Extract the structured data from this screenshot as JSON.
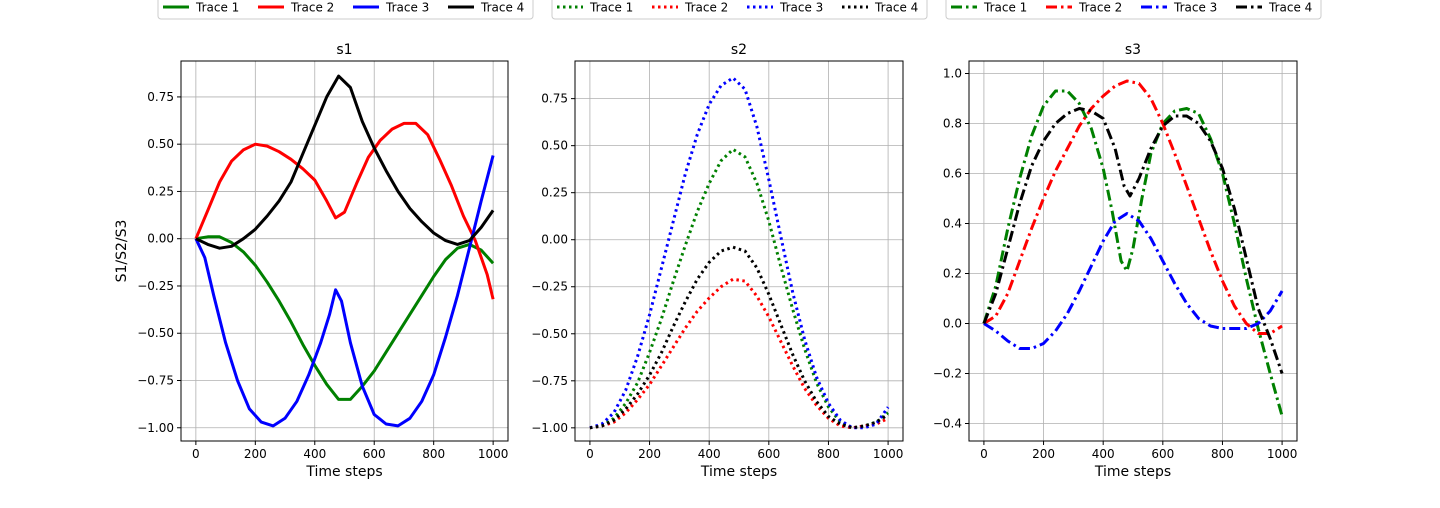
{
  "figure": {
    "shared_xlabel": "Time steps",
    "shared_ylabel": "S1/S2/S3"
  },
  "chart_data": [
    {
      "type": "line",
      "title": "s1",
      "xlabel": "Time steps",
      "ylabel": "S1/S2/S3",
      "xlim": [
        -50,
        1050
      ],
      "ylim": [
        -1.07,
        0.94
      ],
      "xticks": [
        0,
        200,
        400,
        600,
        800,
        1000
      ],
      "yticks": [
        -1.0,
        -0.75,
        -0.5,
        -0.25,
        0.0,
        0.25,
        0.5,
        0.75
      ],
      "ytick_labels": [
        "−1.00",
        "−0.75",
        "−0.50",
        "−0.25",
        "0.00",
        "0.25",
        "0.50",
        "0.75"
      ],
      "grid": true,
      "legend": {
        "position": "top",
        "style": "solid",
        "entries": [
          "Trace 1",
          "Trace 2",
          "Trace 3",
          "Trace 4"
        ]
      },
      "series": [
        {
          "name": "Trace 1",
          "color": "#008000",
          "style": "solid",
          "x": [
            0,
            40,
            80,
            120,
            160,
            200,
            240,
            280,
            320,
            360,
            400,
            440,
            480,
            520,
            560,
            600,
            640,
            680,
            720,
            760,
            800,
            840,
            880,
            920,
            960,
            1000
          ],
          "y": [
            0.0,
            0.01,
            0.01,
            -0.02,
            -0.07,
            -0.14,
            -0.23,
            -0.33,
            -0.44,
            -0.56,
            -0.67,
            -0.77,
            -0.85,
            -0.85,
            -0.78,
            -0.7,
            -0.6,
            -0.5,
            -0.4,
            -0.3,
            -0.2,
            -0.11,
            -0.05,
            -0.03,
            -0.06,
            -0.13
          ]
        },
        {
          "name": "Trace 2",
          "color": "#ff0000",
          "style": "solid",
          "x": [
            0,
            40,
            80,
            120,
            160,
            200,
            240,
            280,
            320,
            360,
            400,
            440,
            470,
            500,
            540,
            580,
            620,
            660,
            700,
            740,
            780,
            820,
            860,
            900,
            940,
            980,
            1000
          ],
          "y": [
            0.0,
            0.15,
            0.3,
            0.41,
            0.47,
            0.5,
            0.49,
            0.46,
            0.42,
            0.37,
            0.31,
            0.2,
            0.11,
            0.14,
            0.29,
            0.43,
            0.52,
            0.58,
            0.61,
            0.61,
            0.55,
            0.42,
            0.28,
            0.12,
            -0.01,
            -0.19,
            -0.32
          ]
        },
        {
          "name": "Trace 3",
          "color": "#0000ff",
          "style": "solid",
          "x": [
            0,
            30,
            60,
            100,
            140,
            180,
            220,
            260,
            300,
            340,
            380,
            420,
            450,
            470,
            490,
            520,
            560,
            600,
            640,
            680,
            720,
            760,
            800,
            840,
            880,
            920,
            960,
            1000
          ],
          "y": [
            0.0,
            -0.1,
            -0.3,
            -0.55,
            -0.75,
            -0.9,
            -0.97,
            -0.99,
            -0.95,
            -0.86,
            -0.72,
            -0.55,
            -0.4,
            -0.27,
            -0.33,
            -0.55,
            -0.78,
            -0.93,
            -0.98,
            -0.99,
            -0.95,
            -0.86,
            -0.72,
            -0.52,
            -0.3,
            -0.05,
            0.2,
            0.44
          ]
        },
        {
          "name": "Trace 4",
          "color": "#000000",
          "style": "solid",
          "x": [
            0,
            40,
            80,
            120,
            160,
            200,
            240,
            280,
            320,
            360,
            400,
            440,
            480,
            520,
            560,
            600,
            640,
            680,
            720,
            760,
            800,
            840,
            880,
            920,
            960,
            1000
          ],
          "y": [
            0.0,
            -0.03,
            -0.05,
            -0.04,
            0.0,
            0.05,
            0.12,
            0.2,
            0.3,
            0.45,
            0.6,
            0.75,
            0.86,
            0.8,
            0.62,
            0.48,
            0.36,
            0.25,
            0.16,
            0.09,
            0.03,
            -0.01,
            -0.03,
            -0.01,
            0.06,
            0.15
          ]
        }
      ]
    },
    {
      "type": "line",
      "title": "s2",
      "xlabel": "Time steps",
      "ylabel": "",
      "xlim": [
        -50,
        1050
      ],
      "ylim": [
        -1.07,
        0.95
      ],
      "xticks": [
        0,
        200,
        400,
        600,
        800,
        1000
      ],
      "yticks": [
        -1.0,
        -0.75,
        -0.5,
        -0.25,
        0.0,
        0.25,
        0.5,
        0.75
      ],
      "ytick_labels": [
        "−1.00",
        "−0.75",
        "−0.50",
        "−0.25",
        "0.00",
        "0.25",
        "0.50",
        "0.75"
      ],
      "grid": true,
      "legend": {
        "position": "top",
        "style": "dotted",
        "entries": [
          "Trace 1",
          "Trace 2",
          "Trace 3",
          "Trace 4"
        ]
      },
      "series": [
        {
          "name": "Trace 1",
          "color": "#008000",
          "style": "dotted",
          "x": [
            0,
            40,
            80,
            120,
            160,
            200,
            240,
            280,
            320,
            360,
            400,
            440,
            480,
            520,
            560,
            600,
            640,
            680,
            720,
            760,
            800,
            840,
            880,
            920,
            960,
            1000
          ],
          "y": [
            -1.0,
            -0.99,
            -0.95,
            -0.87,
            -0.76,
            -0.6,
            -0.42,
            -0.22,
            -0.03,
            0.15,
            0.3,
            0.42,
            0.48,
            0.44,
            0.3,
            0.1,
            -0.14,
            -0.37,
            -0.58,
            -0.76,
            -0.89,
            -0.97,
            -1.0,
            -0.99,
            -0.97,
            -0.92
          ]
        },
        {
          "name": "Trace 2",
          "color": "#ff0000",
          "style": "dotted",
          "x": [
            0,
            40,
            80,
            120,
            160,
            200,
            240,
            280,
            320,
            360,
            400,
            440,
            480,
            520,
            560,
            600,
            640,
            680,
            720,
            760,
            800,
            840,
            880,
            920,
            960,
            1000
          ],
          "y": [
            -1.0,
            -0.99,
            -0.97,
            -0.92,
            -0.85,
            -0.77,
            -0.67,
            -0.57,
            -0.47,
            -0.38,
            -0.31,
            -0.25,
            -0.21,
            -0.22,
            -0.3,
            -0.41,
            -0.54,
            -0.67,
            -0.79,
            -0.88,
            -0.95,
            -0.99,
            -1.0,
            -0.99,
            -0.98,
            -0.95
          ]
        },
        {
          "name": "Trace 3",
          "color": "#0000ff",
          "style": "dotted",
          "x": [
            0,
            40,
            80,
            120,
            160,
            200,
            240,
            280,
            320,
            360,
            400,
            440,
            480,
            520,
            560,
            600,
            640,
            680,
            720,
            760,
            800,
            840,
            880,
            920,
            960,
            1000
          ],
          "y": [
            -1.0,
            -0.98,
            -0.92,
            -0.8,
            -0.62,
            -0.4,
            -0.15,
            0.1,
            0.35,
            0.56,
            0.72,
            0.82,
            0.86,
            0.8,
            0.6,
            0.32,
            0.02,
            -0.28,
            -0.53,
            -0.73,
            -0.87,
            -0.96,
            -1.0,
            -1.0,
            -0.98,
            -0.89
          ]
        },
        {
          "name": "Trace 4",
          "color": "#000000",
          "style": "dotted",
          "x": [
            0,
            40,
            80,
            120,
            160,
            200,
            240,
            280,
            320,
            360,
            400,
            440,
            480,
            520,
            560,
            600,
            640,
            680,
            720,
            760,
            800,
            840,
            880,
            920,
            960,
            1000
          ],
          "y": [
            -1.0,
            -0.99,
            -0.96,
            -0.9,
            -0.82,
            -0.72,
            -0.6,
            -0.46,
            -0.33,
            -0.21,
            -0.12,
            -0.06,
            -0.04,
            -0.06,
            -0.15,
            -0.29,
            -0.45,
            -0.61,
            -0.75,
            -0.86,
            -0.94,
            -0.98,
            -1.0,
            -0.99,
            -0.97,
            -0.93
          ]
        }
      ]
    },
    {
      "type": "line",
      "title": "s3",
      "xlabel": "Time steps",
      "ylabel": "",
      "xlim": [
        -50,
        1050
      ],
      "ylim": [
        -0.47,
        1.05
      ],
      "xticks": [
        0,
        200,
        400,
        600,
        800,
        1000
      ],
      "yticks": [
        -0.4,
        -0.2,
        0.0,
        0.2,
        0.4,
        0.6,
        0.8,
        1.0
      ],
      "ytick_labels": [
        "−0.4",
        "−0.2",
        "0.0",
        "0.2",
        "0.4",
        "0.6",
        "0.8",
        "1.0"
      ],
      "grid": true,
      "legend": {
        "position": "top",
        "style": "dashdot",
        "entries": [
          "Trace 1",
          "Trace 2",
          "Trace 3",
          "Trace 4"
        ]
      },
      "series": [
        {
          "name": "Trace 1",
          "color": "#008000",
          "style": "dashdot",
          "x": [
            0,
            40,
            80,
            120,
            160,
            200,
            240,
            280,
            320,
            360,
            400,
            430,
            460,
            480,
            500,
            530,
            560,
            600,
            640,
            680,
            720,
            760,
            800,
            840,
            880,
            920,
            960,
            1000
          ],
          "y": [
            0.0,
            0.15,
            0.38,
            0.58,
            0.75,
            0.87,
            0.93,
            0.93,
            0.88,
            0.78,
            0.62,
            0.45,
            0.25,
            0.21,
            0.3,
            0.5,
            0.68,
            0.8,
            0.85,
            0.86,
            0.84,
            0.74,
            0.6,
            0.4,
            0.18,
            -0.02,
            -0.2,
            -0.37
          ]
        },
        {
          "name": "Trace 2",
          "color": "#ff0000",
          "style": "dashdot",
          "x": [
            0,
            40,
            80,
            120,
            160,
            200,
            240,
            280,
            320,
            360,
            400,
            440,
            480,
            520,
            560,
            600,
            640,
            680,
            720,
            760,
            800,
            840,
            880,
            920,
            960,
            1000
          ],
          "y": [
            0.0,
            0.03,
            0.12,
            0.25,
            0.38,
            0.5,
            0.61,
            0.7,
            0.79,
            0.86,
            0.91,
            0.95,
            0.97,
            0.96,
            0.9,
            0.8,
            0.68,
            0.55,
            0.42,
            0.29,
            0.17,
            0.07,
            0.0,
            -0.04,
            -0.04,
            -0.01
          ]
        },
        {
          "name": "Trace 3",
          "color": "#0000ff",
          "style": "dashdot",
          "x": [
            0,
            40,
            80,
            120,
            160,
            200,
            240,
            280,
            320,
            360,
            400,
            440,
            480,
            520,
            560,
            600,
            640,
            680,
            720,
            760,
            800,
            840,
            880,
            920,
            960,
            1000
          ],
          "y": [
            0.0,
            -0.03,
            -0.07,
            -0.1,
            -0.1,
            -0.08,
            -0.03,
            0.04,
            0.13,
            0.23,
            0.33,
            0.41,
            0.44,
            0.41,
            0.34,
            0.25,
            0.16,
            0.08,
            0.02,
            -0.01,
            -0.02,
            -0.02,
            -0.02,
            0.0,
            0.05,
            0.13
          ]
        },
        {
          "name": "Trace 4",
          "color": "#000000",
          "style": "dashdot",
          "x": [
            0,
            40,
            80,
            120,
            160,
            200,
            240,
            280,
            320,
            360,
            400,
            440,
            470,
            490,
            520,
            560,
            600,
            640,
            680,
            720,
            760,
            800,
            840,
            880,
            920,
            960,
            1000
          ],
          "y": [
            0.0,
            0.12,
            0.3,
            0.48,
            0.63,
            0.73,
            0.8,
            0.84,
            0.86,
            0.85,
            0.82,
            0.7,
            0.55,
            0.51,
            0.58,
            0.7,
            0.79,
            0.83,
            0.83,
            0.8,
            0.73,
            0.62,
            0.46,
            0.26,
            0.06,
            -0.06,
            -0.2
          ]
        }
      ]
    }
  ]
}
